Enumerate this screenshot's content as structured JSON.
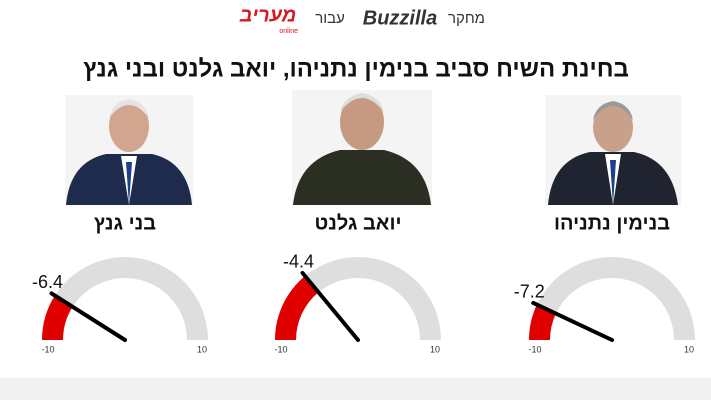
{
  "header": {
    "survey": "מחקר",
    "brand": "Buzzilla",
    "for": "עבור",
    "client": "מעריב",
    "client_sub": "online"
  },
  "title": "בחינת השיח סביב בנימין נתניהו, יואב גלנט ובני גנץ",
  "chart_data": [
    {
      "type": "gauge",
      "title": "בנימין נתניהו",
      "value": -7.2,
      "xlim": [
        -10,
        10
      ],
      "xticks": [
        -10,
        10
      ],
      "color": "#e00000",
      "track_color": "#dedede"
    },
    {
      "type": "gauge",
      "title": "יואב גלנט",
      "value": -4.4,
      "xlim": [
        -10,
        10
      ],
      "xticks": [
        -10,
        10
      ],
      "color": "#e00000",
      "track_color": "#dedede"
    },
    {
      "type": "gauge",
      "title": "בני גנץ",
      "value": -6.4,
      "xlim": [
        -10,
        10
      ],
      "xticks": [
        -10,
        10
      ],
      "color": "#e00000",
      "track_color": "#dedede"
    }
  ]
}
